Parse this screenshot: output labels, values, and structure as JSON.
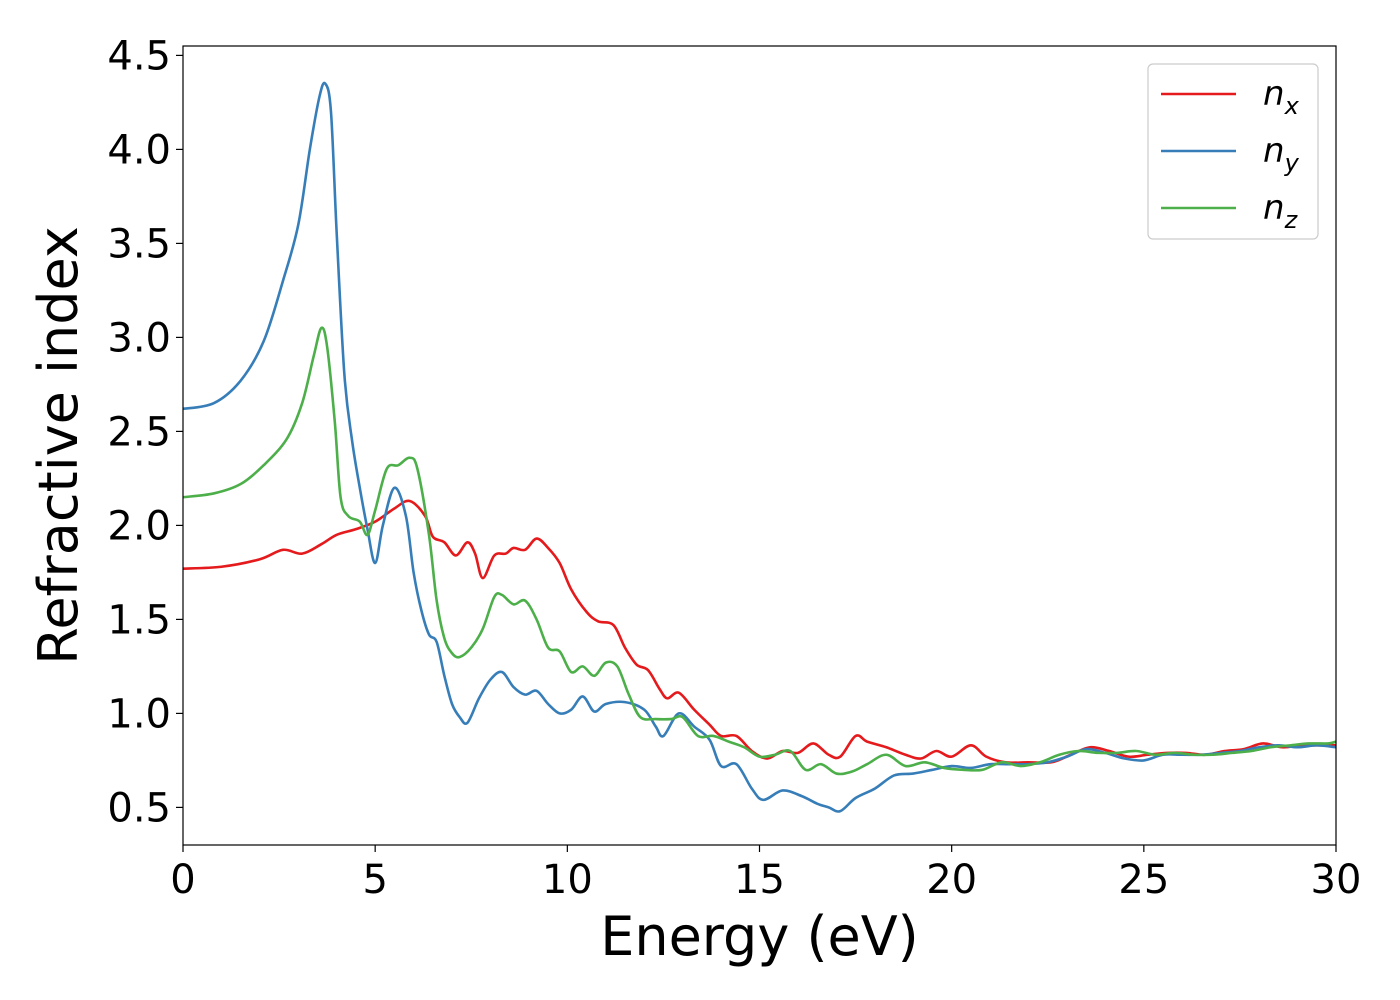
{
  "chart_data": {
    "type": "line",
    "title": "",
    "xlabel": "Energy (eV)",
    "ylabel": "Refractive index",
    "xlim": [
      0,
      30
    ],
    "ylim": [
      0.3,
      4.55
    ],
    "xticks": [
      0,
      5,
      10,
      15,
      20,
      25,
      30
    ],
    "yticks": [
      0.5,
      1.0,
      1.5,
      2.0,
      2.5,
      3.0,
      3.5,
      4.0,
      4.5
    ],
    "xtick_labels": [
      "0",
      "5",
      "10",
      "15",
      "20",
      "25",
      "30"
    ],
    "ytick_labels": [
      "0.5",
      "1.0",
      "1.5",
      "2.0",
      "2.5",
      "3.0",
      "3.5",
      "4.0",
      "4.5"
    ],
    "grid": false,
    "legend_position": "top-right",
    "series": [
      {
        "name": "n_x",
        "label_base": "n",
        "label_sub": "x",
        "color": "#e41a1c",
        "points": [
          [
            0,
            1.77
          ],
          [
            1,
            1.78
          ],
          [
            2,
            1.82
          ],
          [
            2.6,
            1.87
          ],
          [
            3.1,
            1.85
          ],
          [
            3.6,
            1.9
          ],
          [
            4,
            1.95
          ],
          [
            4.5,
            1.98
          ],
          [
            5,
            2.02
          ],
          [
            5.5,
            2.09
          ],
          [
            5.9,
            2.13
          ],
          [
            6.3,
            2.05
          ],
          [
            6.5,
            1.94
          ],
          [
            6.8,
            1.91
          ],
          [
            7.1,
            1.84
          ],
          [
            7.4,
            1.91
          ],
          [
            7.6,
            1.85
          ],
          [
            7.8,
            1.72
          ],
          [
            8.1,
            1.84
          ],
          [
            8.4,
            1.85
          ],
          [
            8.6,
            1.88
          ],
          [
            8.9,
            1.87
          ],
          [
            9.2,
            1.93
          ],
          [
            9.5,
            1.88
          ],
          [
            9.8,
            1.8
          ],
          [
            10.1,
            1.66
          ],
          [
            10.5,
            1.54
          ],
          [
            10.8,
            1.49
          ],
          [
            11.2,
            1.47
          ],
          [
            11.5,
            1.35
          ],
          [
            11.8,
            1.26
          ],
          [
            12.1,
            1.23
          ],
          [
            12.4,
            1.13
          ],
          [
            12.6,
            1.08
          ],
          [
            12.9,
            1.11
          ],
          [
            13.3,
            1.02
          ],
          [
            13.7,
            0.94
          ],
          [
            14,
            0.88
          ],
          [
            14.4,
            0.88
          ],
          [
            14.8,
            0.8
          ],
          [
            15.2,
            0.76
          ],
          [
            15.6,
            0.8
          ],
          [
            16,
            0.79
          ],
          [
            16.4,
            0.84
          ],
          [
            16.8,
            0.78
          ],
          [
            17.1,
            0.77
          ],
          [
            17.5,
            0.88
          ],
          [
            17.8,
            0.85
          ],
          [
            18.3,
            0.82
          ],
          [
            18.8,
            0.78
          ],
          [
            19.2,
            0.76
          ],
          [
            19.6,
            0.8
          ],
          [
            20,
            0.77
          ],
          [
            20.5,
            0.83
          ],
          [
            20.9,
            0.77
          ],
          [
            21.4,
            0.74
          ],
          [
            22,
            0.74
          ],
          [
            22.6,
            0.74
          ],
          [
            23.1,
            0.78
          ],
          [
            23.6,
            0.82
          ],
          [
            24.1,
            0.8
          ],
          [
            24.6,
            0.77
          ],
          [
            25.1,
            0.78
          ],
          [
            25.6,
            0.79
          ],
          [
            26.1,
            0.79
          ],
          [
            26.6,
            0.78
          ],
          [
            27.1,
            0.8
          ],
          [
            27.6,
            0.81
          ],
          [
            28.1,
            0.84
          ],
          [
            28.6,
            0.82
          ],
          [
            29.1,
            0.83
          ],
          [
            29.6,
            0.83
          ],
          [
            30,
            0.83
          ]
        ]
      },
      {
        "name": "n_y",
        "label_base": "n",
        "label_sub": "y",
        "color": "#377eb8",
        "points": [
          [
            0,
            2.62
          ],
          [
            0.8,
            2.65
          ],
          [
            1.5,
            2.77
          ],
          [
            2.1,
            2.98
          ],
          [
            2.6,
            3.3
          ],
          [
            3,
            3.6
          ],
          [
            3.3,
            4.0
          ],
          [
            3.55,
            4.28
          ],
          [
            3.7,
            4.35
          ],
          [
            3.85,
            4.2
          ],
          [
            4.0,
            3.55
          ],
          [
            4.2,
            2.8
          ],
          [
            4.4,
            2.45
          ],
          [
            4.6,
            2.2
          ],
          [
            4.8,
            1.98
          ],
          [
            5.0,
            1.8
          ],
          [
            5.2,
            2.0
          ],
          [
            5.5,
            2.2
          ],
          [
            5.8,
            2.05
          ],
          [
            6.0,
            1.75
          ],
          [
            6.2,
            1.55
          ],
          [
            6.4,
            1.42
          ],
          [
            6.6,
            1.38
          ],
          [
            6.8,
            1.2
          ],
          [
            7.0,
            1.05
          ],
          [
            7.2,
            0.98
          ],
          [
            7.4,
            0.95
          ],
          [
            7.7,
            1.08
          ],
          [
            8.0,
            1.18
          ],
          [
            8.3,
            1.22
          ],
          [
            8.6,
            1.14
          ],
          [
            8.9,
            1.1
          ],
          [
            9.2,
            1.12
          ],
          [
            9.5,
            1.05
          ],
          [
            9.8,
            1.0
          ],
          [
            10.1,
            1.02
          ],
          [
            10.4,
            1.09
          ],
          [
            10.7,
            1.01
          ],
          [
            11.0,
            1.05
          ],
          [
            11.5,
            1.06
          ],
          [
            12.0,
            1.02
          ],
          [
            12.3,
            0.93
          ],
          [
            12.5,
            0.88
          ],
          [
            12.9,
            1.0
          ],
          [
            13.3,
            0.93
          ],
          [
            13.7,
            0.86
          ],
          [
            14.0,
            0.72
          ],
          [
            14.4,
            0.73
          ],
          [
            14.8,
            0.6
          ],
          [
            15.1,
            0.54
          ],
          [
            15.6,
            0.59
          ],
          [
            16.1,
            0.56
          ],
          [
            16.5,
            0.52
          ],
          [
            16.8,
            0.5
          ],
          [
            17.1,
            0.48
          ],
          [
            17.5,
            0.55
          ],
          [
            18.0,
            0.6
          ],
          [
            18.5,
            0.67
          ],
          [
            19.0,
            0.68
          ],
          [
            19.5,
            0.7
          ],
          [
            20.0,
            0.72
          ],
          [
            20.5,
            0.71
          ],
          [
            21.0,
            0.73
          ],
          [
            21.5,
            0.73
          ],
          [
            22.0,
            0.73
          ],
          [
            22.5,
            0.74
          ],
          [
            23.0,
            0.77
          ],
          [
            23.5,
            0.81
          ],
          [
            24.0,
            0.79
          ],
          [
            24.5,
            0.76
          ],
          [
            25.0,
            0.75
          ],
          [
            25.5,
            0.78
          ],
          [
            26.0,
            0.78
          ],
          [
            26.5,
            0.78
          ],
          [
            27.0,
            0.79
          ],
          [
            27.5,
            0.8
          ],
          [
            28.0,
            0.82
          ],
          [
            28.5,
            0.83
          ],
          [
            29.0,
            0.82
          ],
          [
            29.5,
            0.83
          ],
          [
            30,
            0.82
          ]
        ]
      },
      {
        "name": "n_z",
        "label_base": "n",
        "label_sub": "z",
        "color": "#4daf4a",
        "points": [
          [
            0,
            2.15
          ],
          [
            0.8,
            2.17
          ],
          [
            1.5,
            2.22
          ],
          [
            2.1,
            2.32
          ],
          [
            2.7,
            2.46
          ],
          [
            3.1,
            2.65
          ],
          [
            3.4,
            2.9
          ],
          [
            3.6,
            3.05
          ],
          [
            3.75,
            2.95
          ],
          [
            3.95,
            2.55
          ],
          [
            4.1,
            2.15
          ],
          [
            4.3,
            2.05
          ],
          [
            4.6,
            2.02
          ],
          [
            4.8,
            1.95
          ],
          [
            5.0,
            2.08
          ],
          [
            5.3,
            2.3
          ],
          [
            5.6,
            2.32
          ],
          [
            5.9,
            2.36
          ],
          [
            6.1,
            2.3
          ],
          [
            6.4,
            1.95
          ],
          [
            6.6,
            1.6
          ],
          [
            6.8,
            1.4
          ],
          [
            7.0,
            1.32
          ],
          [
            7.2,
            1.3
          ],
          [
            7.5,
            1.35
          ],
          [
            7.8,
            1.45
          ],
          [
            8.1,
            1.62
          ],
          [
            8.3,
            1.63
          ],
          [
            8.6,
            1.58
          ],
          [
            8.9,
            1.6
          ],
          [
            9.2,
            1.5
          ],
          [
            9.5,
            1.35
          ],
          [
            9.8,
            1.33
          ],
          [
            10.1,
            1.22
          ],
          [
            10.4,
            1.25
          ],
          [
            10.7,
            1.2
          ],
          [
            11.0,
            1.27
          ],
          [
            11.3,
            1.25
          ],
          [
            11.6,
            1.1
          ],
          [
            11.9,
            0.98
          ],
          [
            12.3,
            0.97
          ],
          [
            12.7,
            0.97
          ],
          [
            13.0,
            0.98
          ],
          [
            13.4,
            0.88
          ],
          [
            13.8,
            0.88
          ],
          [
            14.2,
            0.85
          ],
          [
            14.6,
            0.82
          ],
          [
            15.0,
            0.77
          ],
          [
            15.4,
            0.78
          ],
          [
            15.8,
            0.8
          ],
          [
            16.2,
            0.7
          ],
          [
            16.6,
            0.73
          ],
          [
            17.0,
            0.68
          ],
          [
            17.4,
            0.69
          ],
          [
            17.8,
            0.73
          ],
          [
            18.3,
            0.78
          ],
          [
            18.8,
            0.72
          ],
          [
            19.3,
            0.74
          ],
          [
            19.8,
            0.71
          ],
          [
            20.3,
            0.7
          ],
          [
            20.8,
            0.7
          ],
          [
            21.3,
            0.74
          ],
          [
            21.8,
            0.72
          ],
          [
            22.3,
            0.74
          ],
          [
            22.8,
            0.78
          ],
          [
            23.3,
            0.8
          ],
          [
            23.8,
            0.79
          ],
          [
            24.3,
            0.79
          ],
          [
            24.8,
            0.8
          ],
          [
            25.3,
            0.78
          ],
          [
            25.8,
            0.79
          ],
          [
            26.3,
            0.78
          ],
          [
            26.8,
            0.78
          ],
          [
            27.3,
            0.79
          ],
          [
            27.8,
            0.8
          ],
          [
            28.3,
            0.82
          ],
          [
            28.8,
            0.83
          ],
          [
            29.3,
            0.84
          ],
          [
            29.8,
            0.84
          ],
          [
            30,
            0.85
          ]
        ]
      }
    ]
  }
}
